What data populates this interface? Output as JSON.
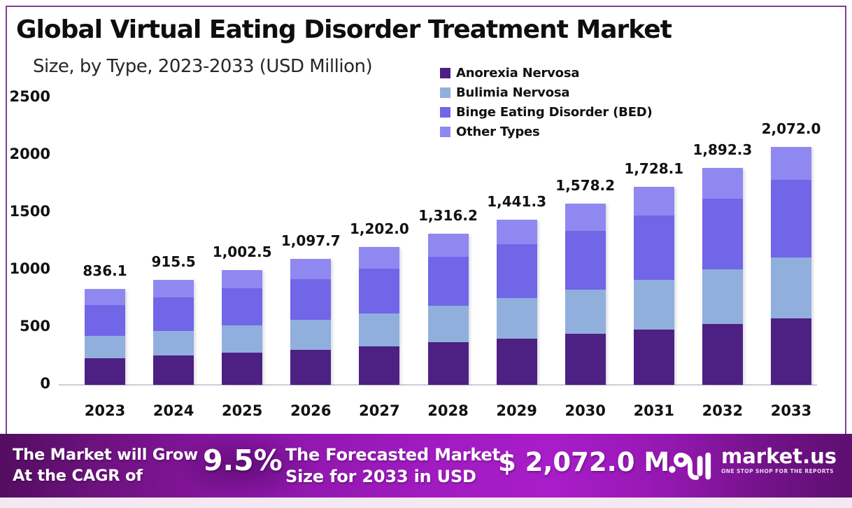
{
  "header": {
    "title": "Global Virtual Eating Disorder Treatment Market",
    "subtitle": "Size, by Type, 2023-2033 (USD Million)"
  },
  "chart_data": {
    "type": "bar",
    "stacked": true,
    "title": "Global Virtual Eating Disorder Treatment Market",
    "subtitle": "Size, by Type, 2023-2033 (USD Million)",
    "unit": "USD Million",
    "categories": [
      "2023",
      "2024",
      "2025",
      "2026",
      "2027",
      "2028",
      "2029",
      "2030",
      "2031",
      "2032",
      "2033"
    ],
    "series": [
      {
        "name": "Anorexia Nervosa",
        "color": "#4d2083",
        "values": [
          234,
          256,
          281,
          307,
          337,
          369,
          404,
          442,
          484,
          530,
          580
        ]
      },
      {
        "name": "Bulimia Nervosa",
        "color": "#91afdd",
        "values": [
          192,
          212,
          235,
          260,
          287,
          318,
          351,
          389,
          430,
          476,
          529
        ]
      },
      {
        "name": "Binge Eating Disorder (BED)",
        "color": "#7165e8",
        "values": [
          270,
          296,
          324,
          355,
          390,
          427,
          468,
          513,
          563,
          617,
          678
        ]
      },
      {
        "name": "Other Types",
        "color": "#8f88f0",
        "values": [
          140.1,
          151.5,
          162.5,
          175.7,
          188.0,
          202.2,
          218.3,
          234.2,
          251.1,
          269.3,
          285.0
        ]
      }
    ],
    "totals_labels": [
      "836.1",
      "915.5",
      "1,002.5",
      "1,097.7",
      "1,202.0",
      "1,316.2",
      "1,441.3",
      "1,578.2",
      "1,728.1",
      "1,892.3",
      "2,072.0"
    ],
    "y_ticks": [
      0,
      500,
      1000,
      1500,
      2000,
      2500
    ],
    "ylim": [
      0,
      2500
    ],
    "grid": false,
    "legend_position": "top-right"
  },
  "band": {
    "left_line1": "The Market will Grow",
    "left_line2": "At the CAGR of",
    "cagr": "9.5%",
    "mid_line1": "The Forecasted Market",
    "mid_line2": "Size for 2033 in USD",
    "value": "$ 2,072.0 M",
    "brand": "market.us",
    "tagline": "ONE STOP SHOP FOR THE REPORTS"
  }
}
